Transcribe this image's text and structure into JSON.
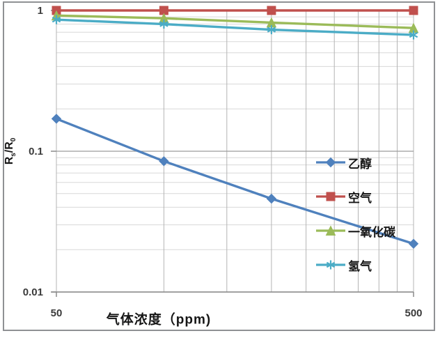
{
  "figure": {
    "x_axis_title": "气体浓度（ppm)",
    "y_axis_title": "Rs/R0",
    "y_axis_title_parts": [
      {
        "text": "R"
      },
      {
        "text": "s",
        "sub": true
      },
      {
        "text": "/R"
      },
      {
        "text": "0",
        "sub": true
      }
    ]
  },
  "chart_data": {
    "type": "line",
    "title": "",
    "xlabel": "气体浓度（ppm)",
    "ylabel": "Rs/R0",
    "x_scale": "log",
    "y_scale": "log",
    "xlim": [
      50,
      500
    ],
    "ylim": [
      0.01,
      1
    ],
    "grid": true,
    "legend_position": "inside-right",
    "x": [
      50,
      100,
      200,
      500
    ],
    "x_ticks": [
      {
        "value": 50,
        "label": "50"
      },
      {
        "value": 500,
        "label": "500"
      }
    ],
    "y_ticks": [
      {
        "value": 1,
        "label": "1"
      },
      {
        "value": 0.1,
        "label": "0.1"
      },
      {
        "value": 0.01,
        "label": "0.01"
      }
    ],
    "x_gridlines": [
      50,
      100,
      150,
      200,
      250,
      300,
      350,
      400,
      450,
      500
    ],
    "y_minor_gridlines": [
      0.9,
      0.8,
      0.7,
      0.6,
      0.5,
      0.4,
      0.3,
      0.2,
      0.09,
      0.08,
      0.07,
      0.06,
      0.05,
      0.04,
      0.03,
      0.02
    ],
    "series": [
      {
        "name": "乙醇",
        "marker": "diamond",
        "color": "#4f81bd",
        "values": [
          0.17,
          0.085,
          0.046,
          0.022
        ]
      },
      {
        "name": "空气",
        "marker": "square",
        "color": "#c0504d",
        "values": [
          1.0,
          1.0,
          1.0,
          1.0
        ]
      },
      {
        "name": "一氧化碳",
        "marker": "triangle",
        "color": "#9bbb59",
        "values": [
          0.92,
          0.88,
          0.82,
          0.75
        ]
      },
      {
        "name": "氢气",
        "marker": "asterisk",
        "color": "#4bacc6",
        "values": [
          0.86,
          0.8,
          0.73,
          0.67
        ]
      }
    ],
    "grid_colors": {
      "minor_h": "#d8d8d8",
      "vertical": "#b4b4b4",
      "major_h": "#9c9c9c",
      "axis": "#8a8a8a"
    }
  }
}
